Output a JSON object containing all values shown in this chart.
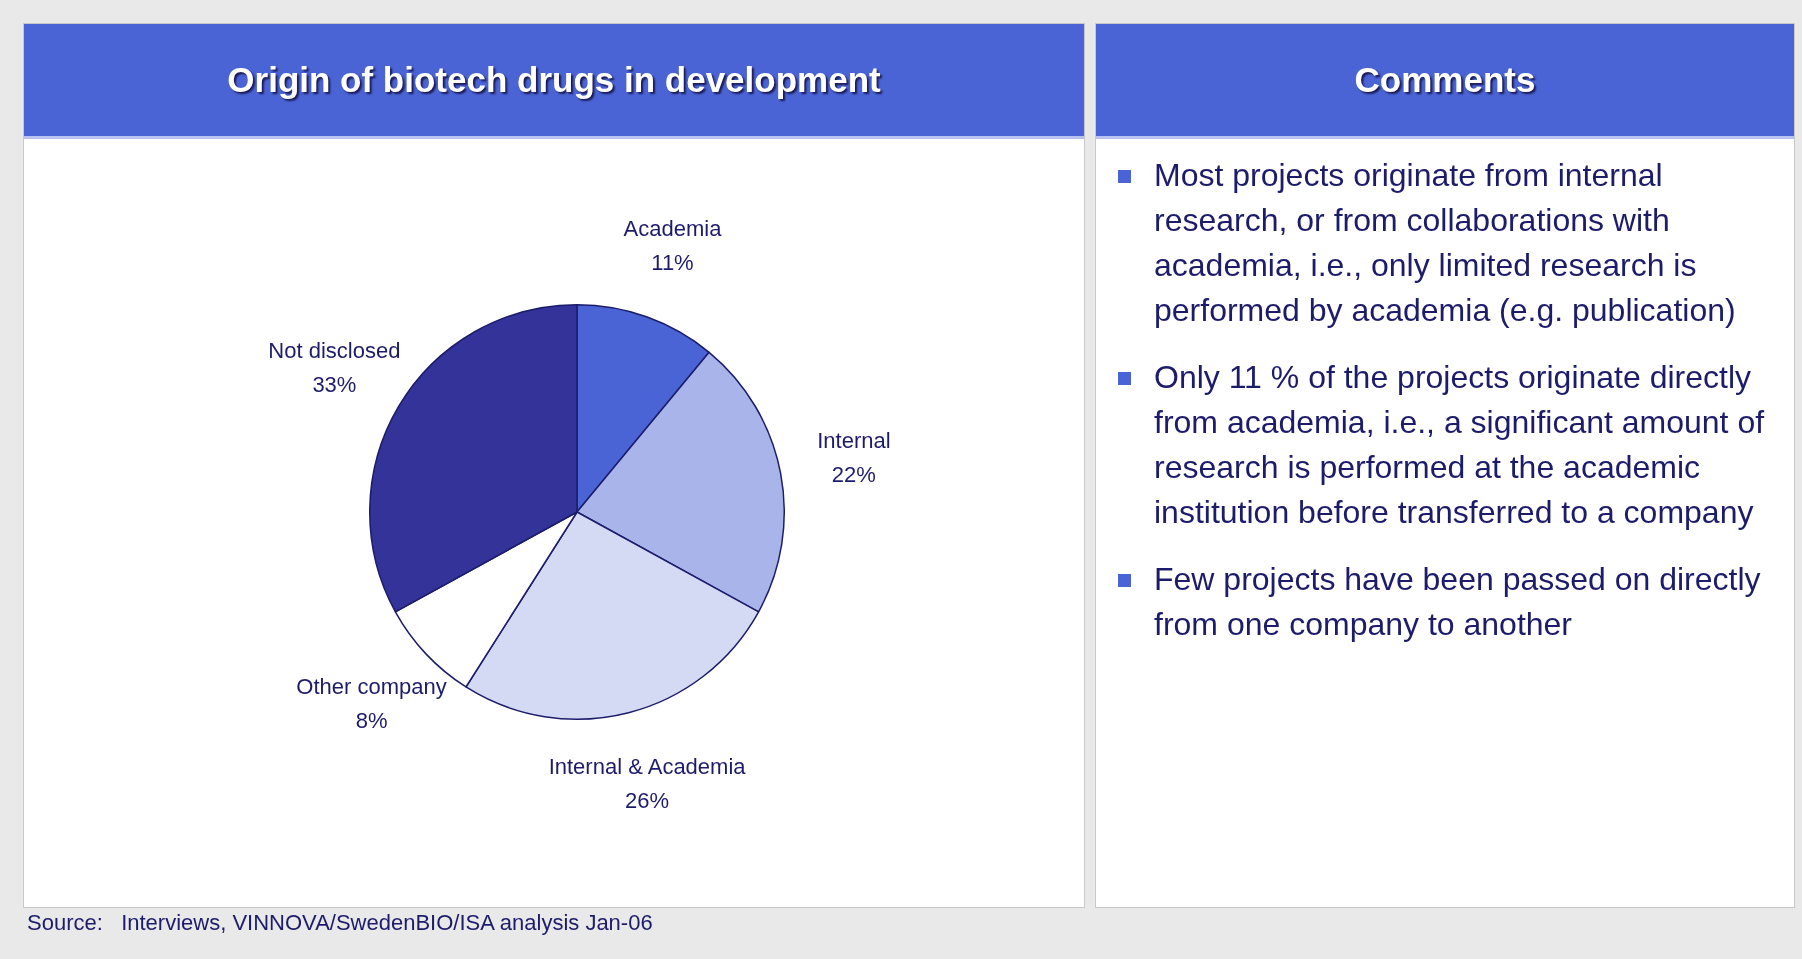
{
  "chart_data": [
    {
      "type": "pie",
      "title": "Origin of biotech drugs in development",
      "categories": [
        "Academia",
        "Internal",
        "Internal & Academia",
        "Other company",
        "Not disclosed"
      ],
      "values": [
        11,
        22,
        26,
        8,
        33
      ],
      "value_labels": [
        "11%",
        "22%",
        "26%",
        "8%",
        "33%"
      ],
      "colors": [
        "#4a64d6",
        "#a9b5ea",
        "#d4daf4",
        "#ffffff",
        "#333399"
      ],
      "legend": false,
      "annotations": [
        "Source:   Interviews, VINNOVA/SwedenBIO/ISA analysis Jan-06"
      ]
    },
    {
      "type": "other",
      "title": "Comments",
      "annotations": [
        "Most projects originate from internal research, or from collaborations with academia, i.e., only limited research is performed by academia (e.g. publication)",
        "Only 11 % of the projects originate directly from academia, i.e., a significant amount of research is performed at the academic institution before transferred to a company",
        "Few projects have been passed on directly from one company to another"
      ]
    }
  ]
}
